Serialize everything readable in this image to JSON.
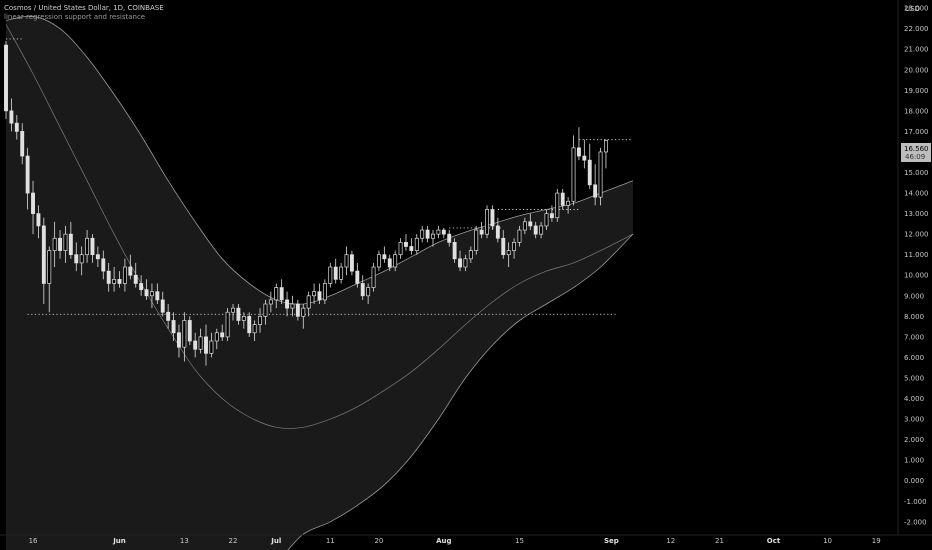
{
  "header": {
    "symbol_line": "Cosmos / United States Dollar, 1D, COINBASE",
    "indicator_line": "linear regression support and resistance"
  },
  "axis": {
    "currency": "USD"
  },
  "price_label": {
    "price": "16.560",
    "countdown": "46:09"
  },
  "colors": {
    "background": "#000000",
    "candle": "#e0e0e0",
    "band_fill": "#1a1a1a",
    "band_line": "#9b9b9b",
    "midline": "#7e7e7e",
    "level_line": "#cfcfcf"
  },
  "chart_data": {
    "type": "candlestick",
    "title": "Cosmos / United States Dollar, 1D, COINBASE",
    "ylabel": "USD",
    "ylim": [
      -2.3,
      23.2
    ],
    "y_ticks": [
      "-2.000",
      "-1.000",
      "0.000",
      "1.000",
      "2.000",
      "3.000",
      "4.000",
      "5.000",
      "6.000",
      "7.000",
      "8.000",
      "9.000",
      "10.000",
      "11.000",
      "12.000",
      "13.000",
      "14.000",
      "15.000",
      "16.000",
      "17.000",
      "18.000",
      "19.000",
      "20.000",
      "21.000",
      "22.000",
      "23.000"
    ],
    "x_ticks": [
      {
        "label": "16",
        "bar": 5
      },
      {
        "label": "Jun",
        "bar": 21,
        "bold": true
      },
      {
        "label": "13",
        "bar": 33
      },
      {
        "label": "22",
        "bar": 42
      },
      {
        "label": "Jul",
        "bar": 50,
        "bold": true
      },
      {
        "label": "11",
        "bar": 60
      },
      {
        "label": "20",
        "bar": 69
      },
      {
        "label": "Aug",
        "bar": 81,
        "bold": true
      },
      {
        "label": "15",
        "bar": 95
      },
      {
        "label": "Sep",
        "bar": 112,
        "bold": true
      },
      {
        "label": "12",
        "bar": 123
      },
      {
        "label": "21",
        "bar": 132
      },
      {
        "label": "Oct",
        "bar": 142,
        "bold": true
      },
      {
        "label": "10",
        "bar": 152
      },
      {
        "label": "19",
        "bar": 161
      },
      {
        "label": "Nov",
        "bar": 174,
        "bold": true
      }
    ],
    "candles": [
      [
        21.2,
        21.4,
        17.6,
        18.0
      ],
      [
        18.0,
        18.6,
        17.0,
        17.4
      ],
      [
        17.4,
        17.8,
        16.6,
        17.0
      ],
      [
        17.0,
        17.4,
        15.4,
        15.8
      ],
      [
        15.8,
        16.2,
        13.2,
        14.0
      ],
      [
        14.0,
        14.6,
        12.0,
        13.0
      ],
      [
        13.0,
        13.4,
        11.8,
        12.4
      ],
      [
        12.4,
        12.8,
        8.6,
        9.6
      ],
      [
        9.6,
        11.4,
        8.2,
        11.2
      ],
      [
        11.2,
        12.6,
        10.4,
        11.8
      ],
      [
        11.8,
        12.2,
        10.8,
        11.2
      ],
      [
        11.2,
        12.4,
        10.6,
        12.0
      ],
      [
        12.0,
        12.6,
        10.8,
        11.0
      ],
      [
        11.0,
        11.6,
        10.2,
        10.6
      ],
      [
        10.6,
        11.4,
        10.0,
        11.0
      ],
      [
        11.0,
        12.2,
        10.6,
        11.8
      ],
      [
        11.8,
        12.0,
        10.6,
        11.0
      ],
      [
        11.0,
        11.4,
        10.4,
        10.8
      ],
      [
        10.8,
        11.2,
        9.8,
        10.2
      ],
      [
        10.2,
        10.6,
        9.2,
        9.6
      ],
      [
        9.6,
        10.4,
        9.2,
        9.8
      ],
      [
        9.8,
        10.2,
        9.4,
        9.6
      ],
      [
        9.6,
        10.8,
        9.2,
        10.4
      ],
      [
        10.4,
        11.0,
        9.8,
        10.0
      ],
      [
        10.0,
        10.6,
        9.4,
        9.6
      ],
      [
        9.6,
        10.0,
        9.0,
        9.3
      ],
      [
        9.3,
        9.8,
        8.8,
        9.0
      ],
      [
        9.0,
        9.6,
        8.4,
        9.2
      ],
      [
        9.2,
        9.6,
        8.6,
        8.8
      ],
      [
        8.8,
        9.2,
        8.0,
        8.2
      ],
      [
        8.2,
        8.6,
        7.4,
        7.8
      ],
      [
        7.8,
        8.2,
        6.8,
        7.2
      ],
      [
        7.2,
        7.6,
        6.0,
        6.5
      ],
      [
        6.5,
        8.2,
        5.8,
        7.8
      ],
      [
        7.8,
        8.0,
        6.6,
        6.8
      ],
      [
        6.8,
        7.2,
        6.0,
        6.4
      ],
      [
        6.4,
        7.4,
        6.2,
        7.0
      ],
      [
        7.0,
        7.6,
        5.6,
        6.2
      ],
      [
        6.2,
        7.2,
        6.0,
        6.8
      ],
      [
        6.8,
        7.4,
        6.4,
        7.2
      ],
      [
        7.2,
        7.6,
        6.8,
        7.0
      ],
      [
        7.0,
        8.4,
        6.8,
        8.2
      ],
      [
        8.2,
        8.6,
        7.8,
        8.4
      ],
      [
        8.4,
        8.6,
        7.6,
        7.8
      ],
      [
        7.8,
        8.2,
        7.4,
        8.0
      ],
      [
        8.0,
        8.2,
        7.0,
        7.2
      ],
      [
        7.2,
        7.8,
        6.8,
        7.6
      ],
      [
        7.6,
        8.4,
        7.2,
        8.0
      ],
      [
        8.0,
        8.8,
        7.6,
        8.6
      ],
      [
        8.6,
        9.2,
        8.2,
        8.8
      ],
      [
        8.8,
        9.6,
        8.4,
        9.4
      ],
      [
        9.4,
        9.8,
        8.6,
        8.8
      ],
      [
        8.8,
        9.2,
        8.0,
        8.4
      ],
      [
        8.4,
        9.0,
        8.0,
        8.6
      ],
      [
        8.6,
        8.8,
        7.8,
        8.0
      ],
      [
        8.0,
        8.6,
        7.4,
        8.4
      ],
      [
        8.4,
        9.2,
        8.0,
        9.0
      ],
      [
        9.0,
        9.6,
        8.6,
        9.2
      ],
      [
        9.2,
        9.6,
        8.6,
        8.8
      ],
      [
        8.8,
        9.8,
        8.6,
        9.6
      ],
      [
        9.6,
        10.6,
        9.4,
        10.4
      ],
      [
        10.4,
        10.8,
        9.6,
        9.8
      ],
      [
        9.8,
        10.6,
        9.6,
        10.4
      ],
      [
        10.4,
        11.4,
        10.0,
        11.0
      ],
      [
        11.0,
        11.2,
        10.0,
        10.2
      ],
      [
        10.2,
        10.6,
        9.4,
        9.6
      ],
      [
        9.6,
        10.0,
        8.8,
        9.0
      ],
      [
        9.0,
        9.6,
        8.6,
        9.4
      ],
      [
        9.4,
        10.6,
        9.2,
        10.4
      ],
      [
        10.4,
        11.2,
        10.2,
        11.0
      ],
      [
        11.0,
        11.4,
        10.6,
        10.8
      ],
      [
        10.8,
        11.0,
        10.2,
        10.4
      ],
      [
        10.4,
        11.2,
        10.2,
        11.0
      ],
      [
        11.0,
        11.8,
        10.8,
        11.6
      ],
      [
        11.6,
        12.0,
        11.2,
        11.4
      ],
      [
        11.4,
        11.8,
        11.0,
        11.2
      ],
      [
        11.2,
        12.0,
        11.0,
        11.8
      ],
      [
        11.8,
        12.4,
        11.6,
        12.2
      ],
      [
        12.2,
        12.4,
        11.6,
        11.8
      ],
      [
        11.8,
        12.2,
        11.4,
        12.0
      ],
      [
        12.0,
        12.4,
        11.8,
        12.2
      ],
      [
        12.2,
        12.3,
        11.8,
        12.0
      ],
      [
        12.0,
        12.2,
        11.4,
        11.6
      ],
      [
        11.6,
        11.8,
        10.6,
        10.8
      ],
      [
        10.8,
        11.2,
        10.2,
        10.4
      ],
      [
        10.4,
        11.0,
        10.2,
        10.8
      ],
      [
        10.8,
        11.4,
        10.6,
        11.2
      ],
      [
        11.2,
        12.4,
        11.0,
        12.2
      ],
      [
        12.2,
        12.6,
        11.8,
        12.0
      ],
      [
        12.0,
        13.4,
        11.8,
        13.2
      ],
      [
        13.2,
        13.4,
        12.2,
        12.4
      ],
      [
        12.4,
        12.8,
        11.6,
        11.8
      ],
      [
        11.8,
        12.2,
        10.8,
        11.0
      ],
      [
        11.0,
        11.6,
        10.4,
        11.2
      ],
      [
        11.2,
        11.8,
        10.8,
        11.6
      ],
      [
        11.6,
        12.4,
        11.4,
        12.2
      ],
      [
        12.2,
        12.8,
        12.0,
        12.6
      ],
      [
        12.6,
        13.0,
        12.2,
        12.4
      ],
      [
        12.4,
        12.6,
        11.8,
        12.0
      ],
      [
        12.0,
        12.6,
        11.8,
        12.4
      ],
      [
        12.4,
        13.2,
        12.2,
        13.0
      ],
      [
        13.0,
        13.4,
        12.6,
        12.8
      ],
      [
        12.8,
        14.2,
        12.6,
        14.0
      ],
      [
        14.0,
        14.2,
        13.2,
        13.4
      ],
      [
        13.4,
        13.8,
        13.0,
        13.6
      ],
      [
        13.6,
        16.8,
        13.4,
        16.2
      ],
      [
        16.2,
        17.2,
        15.6,
        15.8
      ],
      [
        15.8,
        16.6,
        15.2,
        15.6
      ],
      [
        15.6,
        16.4,
        14.2,
        14.4
      ],
      [
        14.4,
        15.4,
        13.4,
        13.8
      ],
      [
        13.8,
        16.2,
        13.4,
        16.0
      ],
      [
        16.0,
        16.6,
        15.2,
        16.56
      ]
    ],
    "regression_band": {
      "knots_bar": [
        0,
        5,
        10,
        15,
        20,
        25,
        30,
        35,
        40,
        45,
        50,
        55,
        60,
        65,
        70,
        75,
        80,
        85,
        90,
        95,
        100,
        105,
        110,
        116
      ],
      "upper": [
        22.4,
        22.6,
        22.0,
        20.6,
        18.8,
        16.8,
        14.6,
        12.6,
        10.8,
        9.6,
        8.8,
        8.6,
        9.0,
        9.6,
        10.2,
        10.9,
        11.6,
        12.1,
        12.5,
        12.9,
        13.2,
        13.5,
        14.0,
        14.6
      ],
      "middle": [
        22.2,
        19.8,
        17.2,
        14.6,
        12.0,
        9.6,
        7.4,
        5.4,
        4.0,
        3.1,
        2.6,
        2.6,
        3.0,
        3.6,
        4.4,
        5.3,
        6.4,
        7.6,
        8.7,
        9.6,
        10.2,
        10.6,
        11.2,
        12.0
      ],
      "lower": [
        null,
        null,
        null,
        null,
        null,
        null,
        null,
        null,
        null,
        null,
        null,
        -2.6,
        -2.0,
        -1.2,
        -0.2,
        1.2,
        3.0,
        5.0,
        6.6,
        7.8,
        8.6,
        9.4,
        10.4,
        12.0
      ]
    },
    "levels": [
      {
        "value": 21.5,
        "from_bar": 0,
        "to_bar": 3
      },
      {
        "value": 8.1,
        "from_bar": 4,
        "to_bar": 113
      },
      {
        "value": 12.3,
        "from_bar": 82,
        "to_bar": 92
      },
      {
        "value": 13.2,
        "from_bar": 91,
        "to_bar": 106
      },
      {
        "value": 16.6,
        "from_bar": 106,
        "to_bar": 116
      }
    ]
  }
}
